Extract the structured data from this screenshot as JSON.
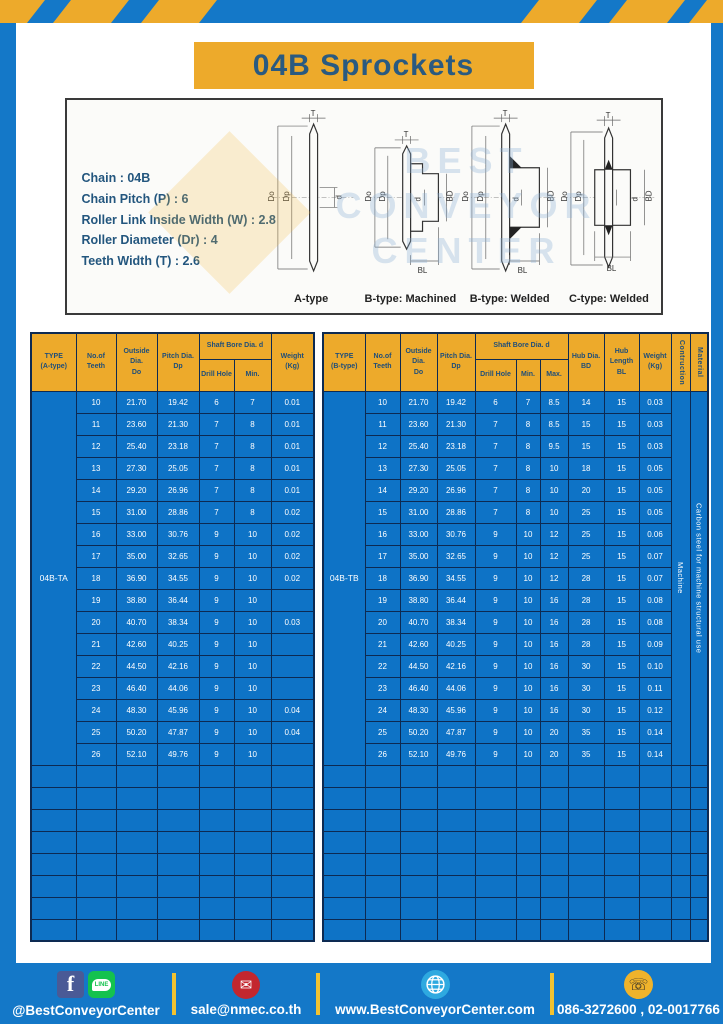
{
  "header": {
    "title": "04B Sprockets"
  },
  "specs": {
    "lines": [
      "Chain : 04B",
      "Chain Pitch (P) : 6",
      "Roller Link Inside Width (W) : 2.8",
      "Roller Diameter (Dr) : 4",
      "Teeth Width (T) : 2.6"
    ]
  },
  "diagrams": {
    "captions": [
      "A-type",
      "B-type: Machined",
      "B-type: Welded",
      "C-type: Welded"
    ],
    "dim_labels": {
      "t": "T",
      "outside": "Do",
      "pitch": "Dp",
      "bore": "d",
      "hub": "BD",
      "hub_len": "BL"
    },
    "watermark_lines": [
      "BEST",
      "CONVEYOR",
      "CENTER"
    ]
  },
  "tables": {
    "a": {
      "headers": {
        "type": "TYPE\n(A-type)",
        "teeth": "No.of\nTeeth",
        "outside": "Outside\nDia.\nDo",
        "pitch": "Pitch Dia.\nDp",
        "shaft": "Shaft Bore Dia. d",
        "drill": "Drill Hole",
        "min": "Min.",
        "weight": "Weight\n(Kg)"
      },
      "type_label": "04B-TA",
      "rows": [
        [
          "10",
          "21.70",
          "19.42",
          "6",
          "7",
          "0.01"
        ],
        [
          "11",
          "23.60",
          "21.30",
          "7",
          "8",
          "0.01"
        ],
        [
          "12",
          "25.40",
          "23.18",
          "7",
          "8",
          "0.01"
        ],
        [
          "13",
          "27.30",
          "25.05",
          "7",
          "8",
          "0.01"
        ],
        [
          "14",
          "29.20",
          "26.96",
          "7",
          "8",
          "0.01"
        ],
        [
          "15",
          "31.00",
          "28.86",
          "7",
          "8",
          "0.02"
        ],
        [
          "16",
          "33.00",
          "30.76",
          "9",
          "10",
          "0.02"
        ],
        [
          "17",
          "35.00",
          "32.65",
          "9",
          "10",
          "0.02"
        ],
        [
          "18",
          "36.90",
          "34.55",
          "9",
          "10",
          "0.02"
        ],
        [
          "19",
          "38.80",
          "36.44",
          "9",
          "10",
          ""
        ],
        [
          "20",
          "40.70",
          "38.34",
          "9",
          "10",
          "0.03"
        ],
        [
          "21",
          "42.60",
          "40.25",
          "9",
          "10",
          ""
        ],
        [
          "22",
          "44.50",
          "42.16",
          "9",
          "10",
          ""
        ],
        [
          "23",
          "46.40",
          "44.06",
          "9",
          "10",
          ""
        ],
        [
          "24",
          "48.30",
          "45.96",
          "9",
          "10",
          "0.04"
        ],
        [
          "25",
          "50.20",
          "47.87",
          "9",
          "10",
          "0.04"
        ],
        [
          "26",
          "52.10",
          "49.76",
          "9",
          "10",
          ""
        ]
      ],
      "empty_rows": 8,
      "empty_cols": 7
    },
    "b": {
      "headers": {
        "type": "TYPE\n(B-type)",
        "teeth": "No.of\nTeeth",
        "outside": "Outside\nDia.\nDo",
        "pitch": "Pitch Dia.\nDp",
        "shaft": "Shaft Bore Dia. d",
        "drill": "Drill Hole",
        "min": "Min.",
        "max": "Max.",
        "hub_dia": "Hub Dia.\nBD",
        "hub_len": "Hub\nLength\nBL",
        "weight": "Weight\n(Kg)",
        "construction": "Contruction",
        "material": "Material"
      },
      "type_label": "04B-TB",
      "construction_value": "Machine",
      "material_value": "Carbon steel for machine structural use",
      "rows": [
        [
          "10",
          "21.70",
          "19.42",
          "6",
          "7",
          "8.5",
          "14",
          "15",
          "0.03"
        ],
        [
          "11",
          "23.60",
          "21.30",
          "7",
          "8",
          "8.5",
          "15",
          "15",
          "0.03"
        ],
        [
          "12",
          "25.40",
          "23.18",
          "7",
          "8",
          "9.5",
          "15",
          "15",
          "0.03"
        ],
        [
          "13",
          "27.30",
          "25.05",
          "7",
          "8",
          "10",
          "18",
          "15",
          "0.05"
        ],
        [
          "14",
          "29.20",
          "26.96",
          "7",
          "8",
          "10",
          "20",
          "15",
          "0.05"
        ],
        [
          "15",
          "31.00",
          "28.86",
          "7",
          "8",
          "10",
          "25",
          "15",
          "0.05"
        ],
        [
          "16",
          "33.00",
          "30.76",
          "9",
          "10",
          "12",
          "25",
          "15",
          "0.06"
        ],
        [
          "17",
          "35.00",
          "32.65",
          "9",
          "10",
          "12",
          "25",
          "15",
          "0.07"
        ],
        [
          "18",
          "36.90",
          "34.55",
          "9",
          "10",
          "12",
          "28",
          "15",
          "0.07"
        ],
        [
          "19",
          "38.80",
          "36.44",
          "9",
          "10",
          "16",
          "28",
          "15",
          "0.08"
        ],
        [
          "20",
          "40.70",
          "38.34",
          "9",
          "10",
          "16",
          "28",
          "15",
          "0.08"
        ],
        [
          "21",
          "42.60",
          "40.25",
          "9",
          "10",
          "16",
          "28",
          "15",
          "0.09"
        ],
        [
          "22",
          "44.50",
          "42.16",
          "9",
          "10",
          "16",
          "30",
          "15",
          "0.10"
        ],
        [
          "23",
          "46.40",
          "44.06",
          "9",
          "10",
          "16",
          "30",
          "15",
          "0.11"
        ],
        [
          "24",
          "48.30",
          "45.96",
          "9",
          "10",
          "16",
          "30",
          "15",
          "0.12"
        ],
        [
          "25",
          "50.20",
          "47.87",
          "9",
          "10",
          "20",
          "35",
          "15",
          "0.14"
        ],
        [
          "26",
          "52.10",
          "49.76",
          "9",
          "10",
          "20",
          "35",
          "15",
          "0.14"
        ]
      ],
      "empty_rows": 8,
      "empty_cols": 12
    }
  },
  "footer": {
    "items": [
      {
        "text": "@BestConveyorCenter"
      },
      {
        "text": "sale@nmec.co.th"
      },
      {
        "text": "www.BestConveyorCenter.com"
      },
      {
        "text": "086-3272600 , 02-0017766"
      }
    ],
    "line_badge": "LINE"
  },
  "colors": {
    "frame_blue": "#1478c8",
    "cell_blue": "#0e73c6",
    "grid_navy": "#0d2a52",
    "accent_yellow": "#edaa2b",
    "title_text": "#2a5a80"
  }
}
